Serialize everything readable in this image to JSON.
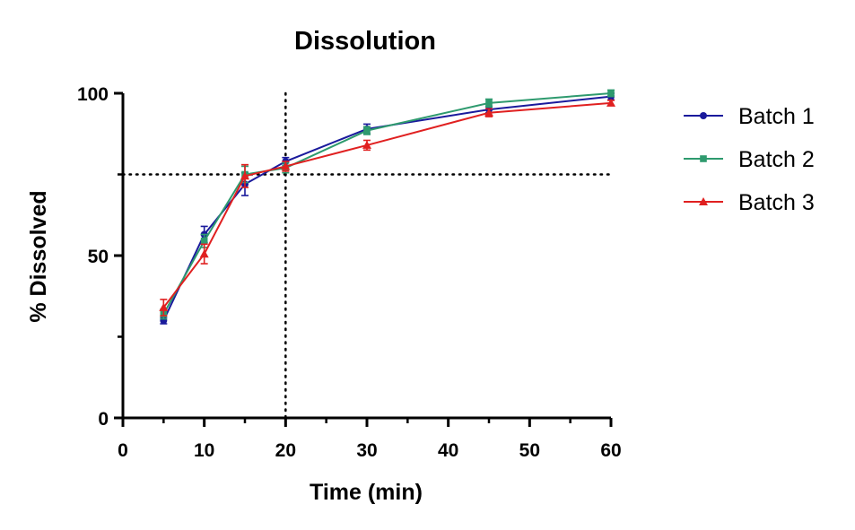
{
  "chart_data": {
    "type": "line",
    "title": "Dissolution",
    "xlabel": "Time (min)",
    "ylabel": "% Dissolved",
    "xlim": [
      0,
      60
    ],
    "ylim": [
      0,
      100
    ],
    "x_ticks": [
      0,
      10,
      20,
      30,
      40,
      50,
      60
    ],
    "y_ticks": [
      0,
      50,
      100
    ],
    "x_tick_labels": [
      "0",
      "10",
      "20",
      "30",
      "40",
      "50",
      "60"
    ],
    "y_tick_labels": [
      "0",
      "50",
      "100"
    ],
    "reference_lines": {
      "x": 20,
      "y": 75,
      "style": "dotted"
    },
    "legend_position": "right",
    "x": [
      5,
      10,
      15,
      20,
      30,
      45,
      60
    ],
    "series": [
      {
        "name": "Batch 1",
        "color": "#1a1a9c",
        "marker": "circle",
        "values": [
          30,
          56.5,
          72,
          79,
          89,
          95,
          99
        ],
        "errors": [
          1,
          2.5,
          3.5,
          1.2,
          1.5,
          1,
          1
        ]
      },
      {
        "name": "Batch 2",
        "color": "#2e9a6e",
        "marker": "square",
        "values": [
          32,
          54.5,
          75,
          77,
          88.5,
          97,
          100
        ],
        "errors": [
          1.5,
          2,
          2.5,
          1.5,
          1.2,
          1.2,
          1
        ]
      },
      {
        "name": "Batch 3",
        "color": "#e02020",
        "marker": "triangle",
        "values": [
          34,
          50.5,
          74.5,
          77.5,
          84,
          94,
          97
        ],
        "errors": [
          2.5,
          3,
          3.5,
          1.5,
          1.5,
          1.2,
          0.8
        ]
      }
    ]
  }
}
